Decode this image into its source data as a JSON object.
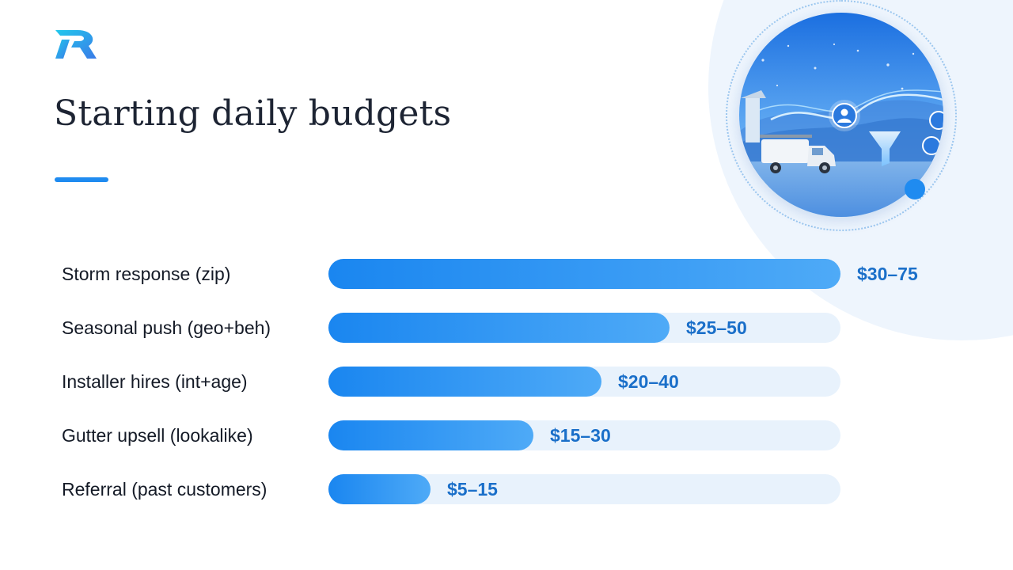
{
  "slide": {
    "title": "Starting daily budgets",
    "accent_color": "#1f8bf0",
    "logo_icon": "stylized-r-logo-icon",
    "hero_image": "service-truck-lead-funnel-illustration"
  },
  "chart_data": {
    "type": "bar",
    "orientation": "horizontal",
    "title": "Starting daily budgets",
    "xlabel": "",
    "ylabel": "",
    "categories": [
      "Storm response (zip)",
      "Seasonal push (geo+beh)",
      "Installer hires (int+age)",
      "Gutter upsell (lookalike)",
      "Referral (past customers)"
    ],
    "value_labels": [
      "$30–75",
      "$25–50",
      "$20–40",
      "$15–30",
      "$5–15"
    ],
    "values": [
      75,
      50,
      40,
      30,
      15
    ],
    "ranges": [
      [
        30,
        75
      ],
      [
        25,
        50
      ],
      [
        20,
        40
      ],
      [
        15,
        30
      ],
      [
        5,
        15
      ]
    ],
    "xlim": [
      0,
      75
    ],
    "grid": false,
    "legend": "none",
    "bar_color_start": "#1a86f0",
    "bar_color_end": "#4eaaf7",
    "track_color": "#e8f2fc",
    "value_color": "#1a6fc9"
  }
}
